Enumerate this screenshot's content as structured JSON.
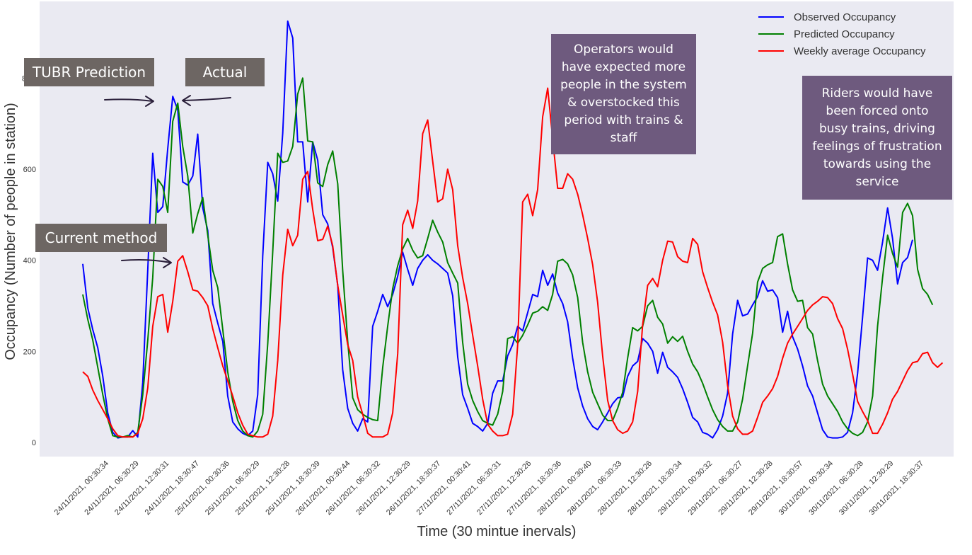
{
  "chart_data": {
    "type": "line",
    "xlabel": "Time (30 mintue inervals)",
    "ylabel": "Occupancy (Number of people in station)",
    "ylim": [
      -30,
      930
    ],
    "yticks": [
      0,
      200,
      400,
      600
    ],
    "clipped_ytick": "8",
    "xticks": [
      "24/11/2021, 00:30:34",
      "24/11/2021, 06:30:29",
      "24/11/2021, 12:30:31",
      "24/11/2021, 18:30:47",
      "25/11/2021, 00:30:36",
      "25/11/2021, 06:30:29",
      "25/11/2021, 12:30:28",
      "25/11/2021, 18:30:39",
      "26/11/2021, 00:30:44",
      "26/11/2021, 06:30:32",
      "26/11/2021, 12:30:29",
      "26/11/2021, 18:30:37",
      "27/11/2021, 00:30:41",
      "27/11/2021, 06:30:31",
      "27/11/2021, 12:30:26",
      "27/11/2021, 18:30:36",
      "28/11/2021, 00:30:40",
      "28/11/2021, 06:30:33",
      "28/11/2021, 12:30:26",
      "28/11/2021, 18:30:34",
      "29/11/2021, 00:30:32",
      "29/11/2021, 06:30:27",
      "29/11/2021, 12:30:28",
      "29/11/2021, 18:30:57",
      "30/11/2021, 00:30:34",
      "30/11/2021, 06:30:28",
      "30/11/2021, 12:30:29",
      "30/11/2021, 18:30:37"
    ],
    "series": [
      {
        "name": "Observed Occupancy",
        "color": "#0000ff",
        "values": [
          392,
          295,
          248,
          208,
          145,
          65,
          22,
          10,
          12,
          12,
          26,
          12,
          132,
          380,
          635,
          505,
          518,
          645,
          760,
          730,
          572,
          565,
          585,
          677,
          515,
          465,
          305,
          262,
          222,
          102,
          45,
          30,
          20,
          15,
          25,
          105,
          410,
          615,
          590,
          530,
          680,
          925,
          888,
          660,
          660,
          528,
          660,
          620,
          500,
          480,
          428,
          345,
          160,
          75,
          42,
          25,
          52,
          45,
          255,
          288,
          325,
          298,
          325,
          365,
          418,
          380,
          345,
          382,
          400,
          412,
          400,
          392,
          382,
          372,
          322,
          188,
          105,
          75,
          42,
          35,
          25,
          42,
          108,
          135,
          135,
          190,
          215,
          255,
          245,
          285,
          325,
          320,
          378,
          345,
          370,
          328,
          305,
          265,
          185,
          120,
          80,
          52,
          35,
          28,
          45,
          65,
          85,
          98,
          100,
          145,
          168,
          178,
          228,
          218,
          200,
          152,
          198,
          165,
          155,
          143,
          118,
          88,
          55,
          45,
          22,
          18,
          10,
          28,
          58,
          108,
          238,
          312,
          278,
          282,
          302,
          320,
          355,
          332,
          335,
          318,
          242,
          288,
          232,
          205,
          168,
          124,
          102,
          65,
          28,
          12,
          10,
          10,
          12,
          22,
          65,
          152,
          275,
          405,
          400,
          378,
          440,
          515,
          448,
          348,
          395,
          406,
          445
        ]
      },
      {
        "name": "Predicted Occupancy",
        "color": "#008000",
        "values": [
          325,
          270,
          225,
          165,
          105,
          52,
          15,
          12,
          12,
          15,
          12,
          22,
          105,
          225,
          362,
          578,
          562,
          505,
          705,
          745,
          650,
          585,
          460,
          502,
          538,
          455,
          378,
          340,
          248,
          155,
          90,
          48,
          25,
          15,
          12,
          25,
          62,
          218,
          418,
          635,
          615,
          618,
          650,
          765,
          800,
          662,
          660,
          570,
          562,
          610,
          640,
          568,
          378,
          222,
          98,
          72,
          62,
          55,
          50,
          48,
          165,
          255,
          338,
          388,
          425,
          448,
          422,
          405,
          410,
          448,
          488,
          462,
          440,
          395,
          372,
          350,
          220,
          128,
          92,
          68,
          48,
          42,
          38,
          62,
          112,
          228,
          232,
          218,
          235,
          258,
          284,
          288,
          298,
          290,
          325,
          398,
          402,
          392,
          368,
          318,
          220,
          155,
          110,
          85,
          60,
          48,
          48,
          75,
          110,
          185,
          252,
          245,
          255,
          300,
          312,
          275,
          260,
          218,
          232,
          222,
          233,
          200,
          172,
          155,
          130,
          100,
          72,
          50,
          35,
          25,
          25,
          45,
          95,
          168,
          240,
          352,
          382,
          390,
          395,
          452,
          458,
          392,
          335,
          310,
          312,
          252,
          238,
          180,
          128,
          102,
          85,
          68,
          45,
          30,
          20,
          15,
          22,
          45,
          102,
          255,
          362,
          455,
          415,
          385,
          505,
          525,
          498,
          380,
          338,
          325,
          302
        ]
      },
      {
        "name": "Weekly average Occupancy",
        "color": "#ff0000",
        "values": [
          155,
          145,
          115,
          92,
          72,
          52,
          30,
          15,
          12,
          12,
          12,
          20,
          52,
          120,
          255,
          320,
          325,
          242,
          310,
          398,
          410,
          375,
          335,
          332,
          318,
          300,
          250,
          208,
          168,
          135,
          102,
          65,
          38,
          18,
          15,
          12,
          12,
          18,
          58,
          180,
          368,
          468,
          432,
          455,
          578,
          595,
          512,
          443,
          446,
          475,
          432,
          345,
          280,
          215,
          180,
          100,
          62,
          20,
          12,
          12,
          12,
          18,
          65,
          195,
          478,
          510,
          470,
          530,
          678,
          708,
          618,
          528,
          535,
          600,
          555,
          432,
          362,
          305,
          235,
          168,
          95,
          40,
          25,
          15,
          15,
          18,
          62,
          215,
          528,
          545,
          498,
          555,
          715,
          778,
          668,
          558,
          558,
          590,
          578,
          545,
          500,
          448,
          390,
          308,
          190,
          92,
          48,
          28,
          20,
          25,
          45,
          112,
          258,
          345,
          360,
          342,
          400,
          442,
          440,
          408,
          398,
          395,
          448,
          435,
          375,
          340,
          308,
          280,
          220,
          125,
          58,
          30,
          18,
          18,
          25,
          55,
          88,
          102,
          118,
          145,
          185,
          218,
          238,
          255,
          272,
          290,
          302,
          310,
          320,
          318,
          305,
          272,
          250,
          205,
          150,
          90,
          68,
          48,
          20,
          20,
          40,
          65,
          95,
          112,
          135,
          158,
          175,
          178,
          195,
          198,
          175,
          165,
          175
        ]
      }
    ],
    "annotations": [
      {
        "label": "TUBR Prediction"
      },
      {
        "label": "Actual"
      },
      {
        "label": "Current method"
      },
      {
        "label": "Operators would have expected more people in the system & overstocked this period with trains & staff"
      },
      {
        "label": "Riders would have been forced onto busy trains, driving feelings of frustration towards using the service"
      }
    ]
  },
  "annotations": {
    "tubr_label": "TUBR Prediction",
    "actual_label": "Actual",
    "current_label": "Current method",
    "operators_note": [
      "Operators would",
      "have expected more",
      "people in the system",
      "& overstocked this",
      "period with trains &",
      "staff"
    ],
    "riders_note": [
      "Riders would have",
      "been forced onto",
      "busy trains, driving",
      "feelings of frustration",
      "towards using the",
      "service"
    ]
  },
  "colors": {
    "plot_background": "#eaeaf2",
    "tag_background": "#6d6663",
    "note_background": "#6e5a7e"
  }
}
